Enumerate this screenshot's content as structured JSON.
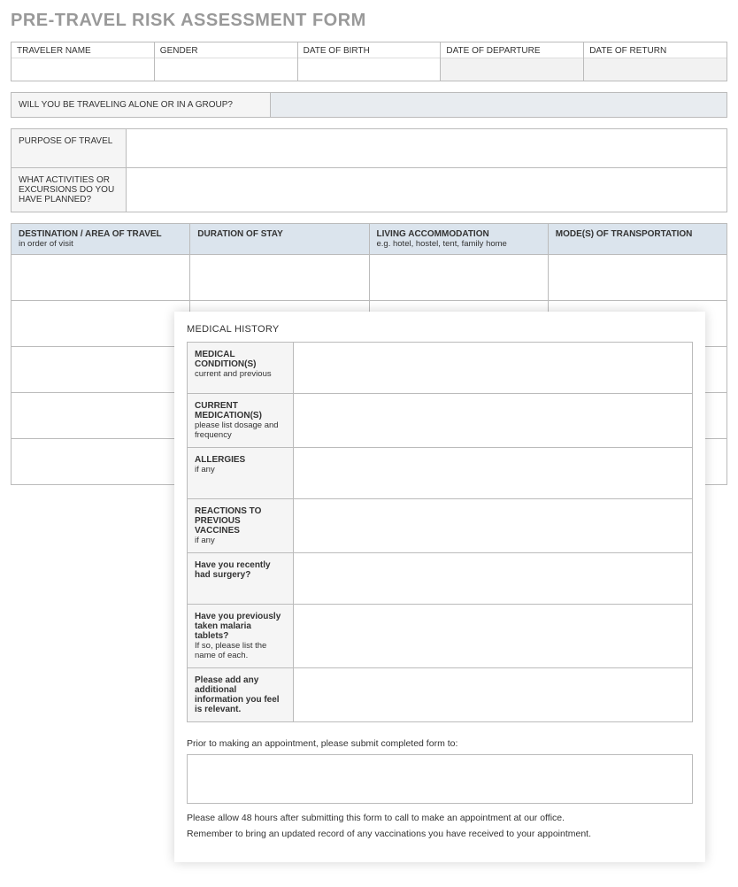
{
  "title": "PRE-TRAVEL RISK ASSESSMENT FORM",
  "top_fields": [
    {
      "label": "TRAVELER NAME",
      "shaded": false
    },
    {
      "label": "GENDER",
      "shaded": false
    },
    {
      "label": "DATE OF BIRTH",
      "shaded": false
    },
    {
      "label": "DATE OF DEPARTURE",
      "shaded": true
    },
    {
      "label": "DATE OF RETURN",
      "shaded": true
    }
  ],
  "group_question": "WILL YOU BE TRAVELING ALONE OR IN A GROUP?",
  "purpose_label": "PURPOSE OF TRAVEL",
  "activities_label": "WHAT ACTIVITIES OR EXCURSIONS DO YOU HAVE PLANNED?",
  "travel_columns": [
    {
      "header": "DESTINATION / AREA OF TRAVEL",
      "sub": "in order of visit"
    },
    {
      "header": "DURATION OF STAY",
      "sub": ""
    },
    {
      "header": "LIVING ACCOMMODATION",
      "sub": "e.g. hotel, hostel, tent, family home"
    },
    {
      "header": "MODE(S) OF TRANSPORTATION",
      "sub": ""
    }
  ],
  "travel_row_count": 5,
  "overlay": {
    "title": "MEDICAL HISTORY",
    "rows": [
      {
        "bold": "MEDICAL CONDITION(S)",
        "sub": "current and previous",
        "short": false
      },
      {
        "bold": "CURRENT MEDICATION(S)",
        "sub": "please list dosage and frequency",
        "short": false
      },
      {
        "bold": "ALLERGIES",
        "sub": "if any",
        "short": false
      },
      {
        "bold": "REACTIONS TO PREVIOUS VACCINES",
        "sub": "if any",
        "short": false
      },
      {
        "bold": "Have you recently had surgery?",
        "sub": "",
        "short": false
      },
      {
        "bold": "Have you previously taken malaria tablets?",
        "sub": "If so, please list the name of each.",
        "short": false
      },
      {
        "bold": "Please add any additional information you feel is relevant.",
        "sub": "",
        "short": true
      }
    ],
    "instr1": "Prior to making an appointment, please submit completed form to:",
    "instr2": "Please allow 48 hours after submitting this form to call to make an appointment at our office.",
    "instr3": "Remember to bring an updated record of any vaccinations you have received to your appointment."
  },
  "colors": {
    "title_gray": "#999999",
    "header_blue": "#dbe4ed",
    "label_gray": "#f5f5f5",
    "border": "#bbbbbb"
  }
}
